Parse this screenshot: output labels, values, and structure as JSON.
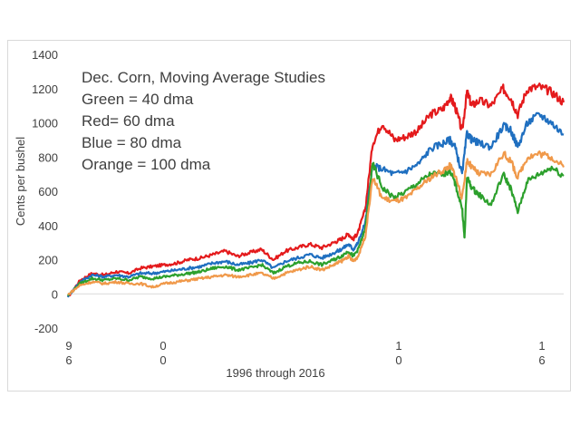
{
  "chart_data": {
    "type": "line",
    "title": "",
    "xlabel": "1996 through 2016",
    "ylabel": "Cents per bushel",
    "ylim": [
      -200,
      1400
    ],
    "yticks": [
      "-200",
      "0",
      "200",
      "400",
      "600",
      "800",
      "1000",
      "1200",
      "1400"
    ],
    "xtick_labels": [
      {
        "top": "9",
        "bottom": "6"
      },
      {
        "top": "0",
        "bottom": "0"
      },
      {
        "top": "1",
        "bottom": "0"
      },
      {
        "top": "1",
        "bottom": "6"
      }
    ],
    "xlim": [
      1996,
      2016.5
    ],
    "grid": false,
    "legend": "none",
    "annotations": [
      "Dec. Corn, Moving Average Studies",
      "Green = 40 dma",
      "Red= 60 dma",
      "Blue = 80 dma",
      "Orange = 100 dma"
    ],
    "series": [
      {
        "color": "#e41a1c",
        "x": [
          1996.0,
          1996.5,
          1997.0,
          1997.5,
          1998.0,
          1998.5,
          1999.0,
          1999.5,
          2000.0,
          2000.5,
          2001.0,
          2001.5,
          2002.0,
          2002.5,
          2003.0,
          2003.5,
          2004.0,
          2004.5,
          2005.0,
          2005.5,
          2006.0,
          2006.5,
          2007.0,
          2007.3,
          2007.6,
          2007.8,
          2008.0,
          2008.3,
          2008.6,
          2009.0,
          2009.5,
          2010.0,
          2010.5,
          2011.0,
          2011.5,
          2011.8,
          2012.0,
          2012.3,
          2012.5,
          2012.7,
          2013.0,
          2013.5,
          2014.0,
          2014.3,
          2014.6,
          2015.0,
          2015.5,
          2016.0,
          2016.5
        ],
        "values": [
          -20,
          80,
          120,
          110,
          130,
          120,
          150,
          160,
          170,
          180,
          200,
          210,
          230,
          250,
          220,
          240,
          260,
          200,
          250,
          270,
          290,
          270,
          300,
          320,
          350,
          320,
          360,
          500,
          880,
          1000,
          900,
          920,
          960,
          1050,
          1080,
          1150,
          1100,
          950,
          1180,
          1100,
          1130,
          1100,
          1200,
          1150,
          1050,
          1200,
          1210,
          1180,
          1120
        ]
      },
      {
        "color": "#1f6fc0",
        "x": [
          1996.0,
          1996.5,
          1997.0,
          1997.5,
          1998.0,
          1998.5,
          1999.0,
          1999.5,
          2000.0,
          2000.5,
          2001.0,
          2001.5,
          2002.0,
          2002.5,
          2003.0,
          2003.5,
          2004.0,
          2004.5,
          2005.0,
          2005.5,
          2006.0,
          2006.5,
          2007.0,
          2007.3,
          2007.6,
          2007.8,
          2008.0,
          2008.3,
          2008.6,
          2009.0,
          2009.5,
          2010.0,
          2010.5,
          2011.0,
          2011.5,
          2011.8,
          2012.0,
          2012.3,
          2012.5,
          2012.7,
          2013.0,
          2013.5,
          2014.0,
          2014.3,
          2014.6,
          2015.0,
          2015.5,
          2016.0,
          2016.5
        ],
        "values": [
          -15,
          70,
          110,
          100,
          110,
          100,
          120,
          120,
          130,
          140,
          150,
          160,
          180,
          190,
          170,
          180,
          200,
          150,
          190,
          210,
          230,
          210,
          240,
          260,
          290,
          260,
          300,
          420,
          750,
          730,
          700,
          720,
          760,
          850,
          880,
          900,
          860,
          700,
          940,
          900,
          880,
          860,
          980,
          960,
          860,
          1000,
          1050,
          1000,
          930
        ]
      },
      {
        "color": "#2ca02c",
        "x": [
          1996.0,
          1996.5,
          1997.0,
          1997.5,
          1998.0,
          1998.5,
          1999.0,
          1999.5,
          2000.0,
          2000.5,
          2001.0,
          2001.5,
          2002.0,
          2002.5,
          2003.0,
          2003.5,
          2004.0,
          2004.5,
          2005.0,
          2005.5,
          2006.0,
          2006.5,
          2007.0,
          2007.3,
          2007.6,
          2007.8,
          2008.0,
          2008.3,
          2008.6,
          2009.0,
          2009.5,
          2010.0,
          2010.5,
          2011.0,
          2011.5,
          2011.8,
          2012.0,
          2012.3,
          2012.4,
          2012.5,
          2012.7,
          2013.0,
          2013.5,
          2014.0,
          2014.3,
          2014.6,
          2015.0,
          2015.5,
          2016.0,
          2016.5
        ],
        "values": [
          -10,
          60,
          90,
          80,
          90,
          80,
          100,
          90,
          100,
          110,
          120,
          130,
          150,
          160,
          140,
          150,
          170,
          120,
          160,
          180,
          190,
          170,
          200,
          220,
          250,
          220,
          260,
          380,
          760,
          620,
          560,
          600,
          650,
          700,
          700,
          720,
          650,
          500,
          320,
          680,
          620,
          580,
          520,
          700,
          620,
          480,
          660,
          700,
          740,
          690
        ]
      },
      {
        "color": "#f0994a",
        "x": [
          1996.0,
          1996.5,
          1997.0,
          1997.5,
          1998.0,
          1998.5,
          1999.0,
          1999.5,
          2000.0,
          2000.5,
          2001.0,
          2001.5,
          2002.0,
          2002.5,
          2003.0,
          2003.5,
          2004.0,
          2004.5,
          2005.0,
          2005.5,
          2006.0,
          2006.5,
          2007.0,
          2007.3,
          2007.6,
          2007.8,
          2008.0,
          2008.3,
          2008.6,
          2009.0,
          2009.5,
          2010.0,
          2010.5,
          2011.0,
          2011.5,
          2011.8,
          2012.0,
          2012.3,
          2012.5,
          2012.7,
          2013.0,
          2013.5,
          2014.0,
          2014.3,
          2014.6,
          2015.0,
          2015.5,
          2016.0,
          2016.5
        ],
        "values": [
          -5,
          50,
          70,
          60,
          70,
          60,
          60,
          40,
          60,
          70,
          80,
          90,
          100,
          110,
          100,
          110,
          120,
          90,
          120,
          140,
          160,
          140,
          170,
          190,
          220,
          190,
          220,
          340,
          680,
          560,
          540,
          560,
          620,
          680,
          720,
          750,
          700,
          560,
          780,
          740,
          700,
          700,
          820,
          780,
          680,
          800,
          820,
          800,
          740
        ]
      }
    ]
  }
}
